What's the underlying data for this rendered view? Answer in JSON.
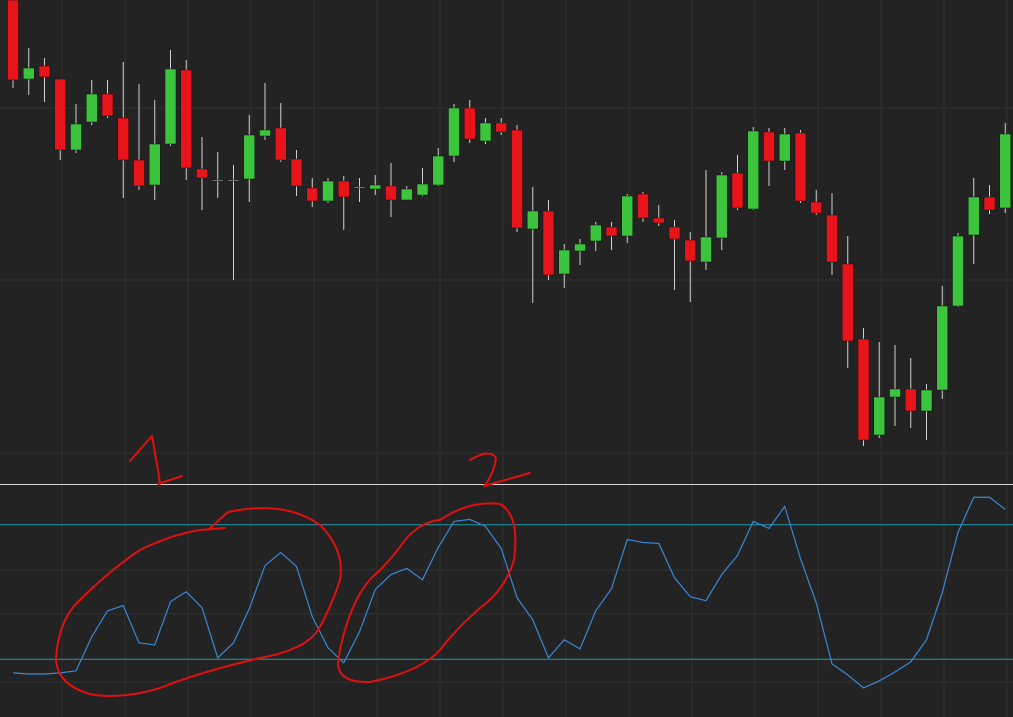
{
  "chart_data": [
    {
      "type": "candlestick",
      "up_color": "#3cc43c",
      "down_color": "#e8141a",
      "ylim": [
        0,
        483
      ],
      "open": [
        483,
        404,
        417,
        404,
        333,
        361,
        389,
        365,
        323,
        298,
        339,
        413,
        314,
        303,
        303,
        304,
        347,
        355,
        324,
        295,
        282,
        302,
        296,
        294,
        297,
        283,
        288,
        298,
        327,
        375,
        342,
        360,
        353,
        254,
        272,
        209,
        232,
        242,
        256,
        247,
        289,
        265,
        256,
        243,
        221,
        245,
        310,
        274,
        351,
        322,
        350,
        281,
        268,
        219,
        144,
        48,
        86,
        94,
        72,
        93,
        177,
        248,
        286,
        275
      ],
      "high": [
        483,
        435,
        425,
        404,
        379,
        403,
        403,
        421,
        399,
        383,
        433,
        423,
        346,
        331,
        318,
        368,
        400,
        380,
        333,
        305,
        305,
        307,
        305,
        308,
        320,
        297,
        315,
        335,
        379,
        383,
        365,
        365,
        358,
        296,
        283,
        239,
        244,
        261,
        261,
        289,
        291,
        278,
        263,
        251,
        313,
        311,
        328,
        356,
        355,
        355,
        353,
        293,
        290,
        247,
        155,
        141,
        138,
        125,
        99,
        197,
        250,
        305,
        298,
        360
      ],
      "low": [
        395,
        388,
        381,
        323,
        330,
        358,
        365,
        285,
        293,
        283,
        337,
        303,
        273,
        285,
        203,
        281,
        343,
        321,
        287,
        276,
        280,
        253,
        281,
        288,
        266,
        283,
        287,
        297,
        321,
        340,
        339,
        348,
        251,
        180,
        203,
        195,
        218,
        232,
        233,
        240,
        261,
        257,
        193,
        181,
        213,
        233,
        273,
        273,
        297,
        313,
        280,
        268,
        208,
        115,
        37,
        45,
        57,
        55,
        43,
        84,
        176,
        219,
        269,
        270
      ],
      "close": [
        403,
        415,
        406,
        333,
        359,
        389,
        367,
        323,
        297,
        339,
        414,
        315,
        305,
        303,
        303,
        348,
        353,
        323,
        297,
        282,
        302,
        286,
        296,
        298,
        283,
        294,
        299,
        327,
        375,
        344,
        360,
        351,
        255,
        272,
        208,
        233,
        239,
        258,
        247,
        287,
        265,
        260,
        244,
        222,
        246,
        308,
        275,
        352,
        322,
        349,
        282,
        270,
        221,
        142,
        43,
        86,
        94,
        72,
        93,
        177,
        247,
        286,
        273,
        349
      ]
    },
    {
      "type": "line",
      "color": "#3b86d6",
      "ylim": [
        0,
        100
      ],
      "levels": [
        80,
        20
      ],
      "level_color": "#1f9aa8",
      "values": [
        13.9,
        13.4,
        13.4,
        13.9,
        14.8,
        30.0,
        41.6,
        43.9,
        27.3,
        26.4,
        45.7,
        50.1,
        43.0,
        20.6,
        27.3,
        42.5,
        61.8,
        67.6,
        61.4,
        39.0,
        25.1,
        18.4,
        32.2,
        51.1,
        57.8,
        60.5,
        55.5,
        69.9,
        81.5,
        82.4,
        79.3,
        69.4,
        47.5,
        37.6,
        20.6,
        28.7,
        24.6,
        41.6,
        51.5,
        73.4,
        72.1,
        71.7,
        56.4,
        47.9,
        46.1,
        57.8,
        66.3,
        81.5,
        78.4,
        88.2,
        64.9,
        45.2,
        17.9,
        13.0,
        7.2,
        10.3,
        14.3,
        18.8,
        28.7,
        49.7,
        76.6,
        92.3,
        92.3,
        86.9
      ]
    }
  ],
  "annotations": [
    "1",
    "2"
  ]
}
